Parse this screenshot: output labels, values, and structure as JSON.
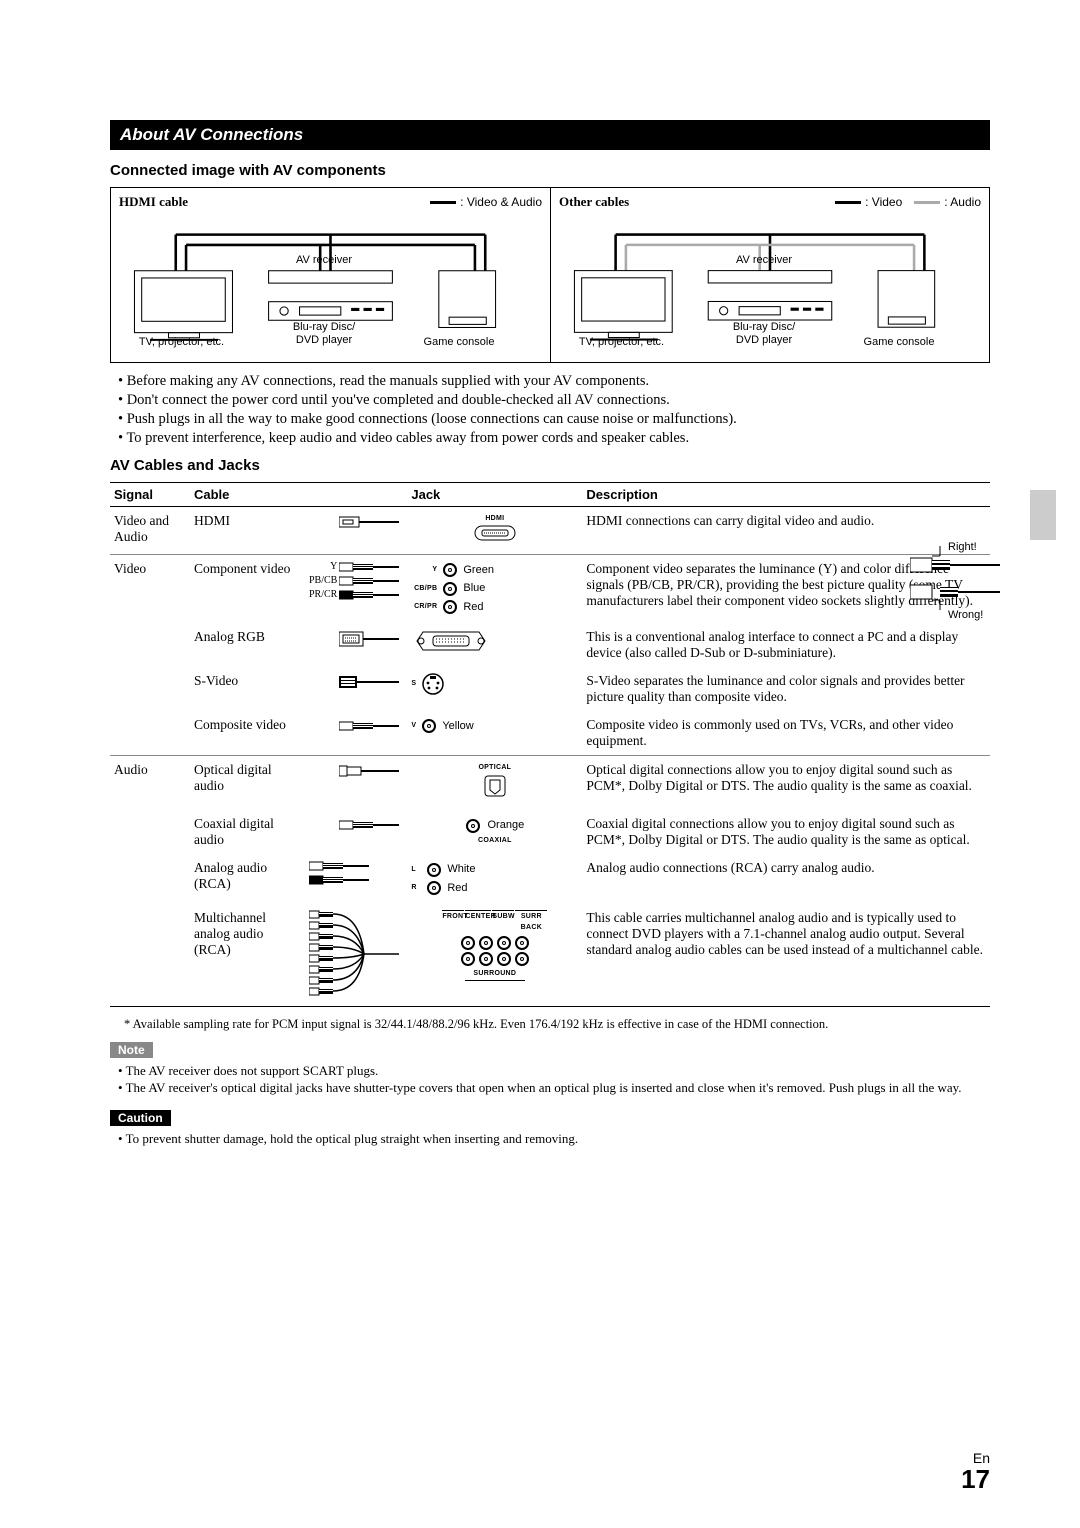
{
  "section_title": "About AV Connections",
  "sub1": "Connected image with AV components",
  "diagram": {
    "left": {
      "title": "HDMI cable",
      "legend": [
        ": Video & Audio"
      ],
      "nodes": {
        "receiver": "AV receiver",
        "tv": "TV, projector, etc.",
        "bluray": "Blu-ray Disc/\nDVD player",
        "console": "Game console"
      }
    },
    "right": {
      "title": "Other cables",
      "legend": [
        ": Video",
        ": Audio"
      ],
      "nodes": {
        "receiver": "AV receiver",
        "tv": "TV, projector, etc.",
        "bluray": "Blu-ray Disc/\nDVD player",
        "console": "Game console"
      }
    }
  },
  "bullets": [
    "Before making any AV connections, read the manuals supplied with your AV components.",
    "Don't connect the power cord until you've completed and double-checked all AV connections.",
    "Push plugs in all the way to make good connections (loose connections can cause noise or malfunctions).",
    "To prevent interference, keep audio and video cables away from power cords and speaker cables."
  ],
  "plug": {
    "right": "Right!",
    "wrong": "Wrong!"
  },
  "sub2": "AV Cables and Jacks",
  "table": {
    "headers": [
      "Signal",
      "Cable",
      "Jack",
      "Description"
    ],
    "rows": [
      {
        "signal": "Video and Audio",
        "cable": "HDMI",
        "jack": {
          "type": "hdmi",
          "label": "HDMI"
        },
        "desc": "HDMI connections can carry digital video and audio."
      },
      {
        "signal": "Video",
        "cable": "Component video",
        "jack": {
          "type": "component",
          "items": [
            [
              "Y",
              "Green"
            ],
            [
              "CB/PB",
              "Blue"
            ],
            [
              "CR/PR",
              "Red"
            ]
          ],
          "labels": [
            "Y",
            "PB/CB",
            "PR/CR"
          ]
        },
        "desc": "Component video separates the luminance (Y) and color difference signals (PB/CB, PR/CR), providing the best picture quality (some TV manufacturers label their component video sockets slightly differently)."
      },
      {
        "signal": "",
        "cable": "Analog RGB",
        "jack": {
          "type": "vga"
        },
        "desc": "This is a conventional analog interface to connect a PC and a display device (also called D-Sub or D-subminiature)."
      },
      {
        "signal": "",
        "cable": "S-Video",
        "jack": {
          "type": "svideo",
          "label": "S"
        },
        "desc": "S-Video separates the luminance and color signals and provides better picture quality than composite video."
      },
      {
        "signal": "",
        "cable": "Composite video",
        "jack": {
          "type": "rca",
          "items": [
            [
              "V",
              "Yellow"
            ]
          ]
        },
        "desc": "Composite video is commonly used on TVs, VCRs, and other video equipment."
      },
      {
        "signal": "Audio",
        "cable": "Optical digital audio",
        "jack": {
          "type": "optical",
          "label": "OPTICAL"
        },
        "desc": "Optical digital connections allow you to enjoy digital sound such as PCM*, Dolby Digital or DTS. The audio quality is the same as coaxial."
      },
      {
        "signal": "",
        "cable": "Coaxial digital audio",
        "jack": {
          "type": "coaxial",
          "items": [
            [
              "",
              "Orange"
            ]
          ],
          "label": "COAXIAL"
        },
        "desc": "Coaxial digital connections allow you to enjoy digital sound such as PCM*, Dolby Digital or DTS. The audio quality is the same as optical."
      },
      {
        "signal": "",
        "cable": "Analog audio (RCA)",
        "jack": {
          "type": "rca2",
          "items": [
            [
              "L",
              "White"
            ],
            [
              "R",
              "Red"
            ]
          ]
        },
        "desc": "Analog audio connections (RCA) carry analog audio."
      },
      {
        "signal": "",
        "cable": "Multichannel analog audio (RCA)",
        "jack": {
          "type": "multi",
          "labels": [
            "FRONT",
            "CENTER",
            "SUBW",
            "SURR BACK",
            "SURROUND"
          ]
        },
        "desc": "This cable carries multichannel analog audio and is typically used to connect DVD players with a 7.1-channel analog audio output. Several standard analog audio cables can be used instead of a multichannel cable."
      }
    ]
  },
  "footnote": "*   Available sampling rate for PCM input signal is 32/44.1/48/88.2/96 kHz. Even 176.4/192 kHz is effective in case of the HDMI connection.",
  "note_label": "Note",
  "notes": [
    "The AV receiver does not support SCART plugs.",
    "The AV receiver's optical digital jacks have shutter-type covers that open when an optical plug is inserted and close when it's removed. Push plugs in all the way."
  ],
  "caution_label": "Caution",
  "cautions": [
    "To prevent shutter damage, hold the optical plug straight when inserting and removing."
  ],
  "footer": {
    "lang": "En",
    "page": "17"
  }
}
